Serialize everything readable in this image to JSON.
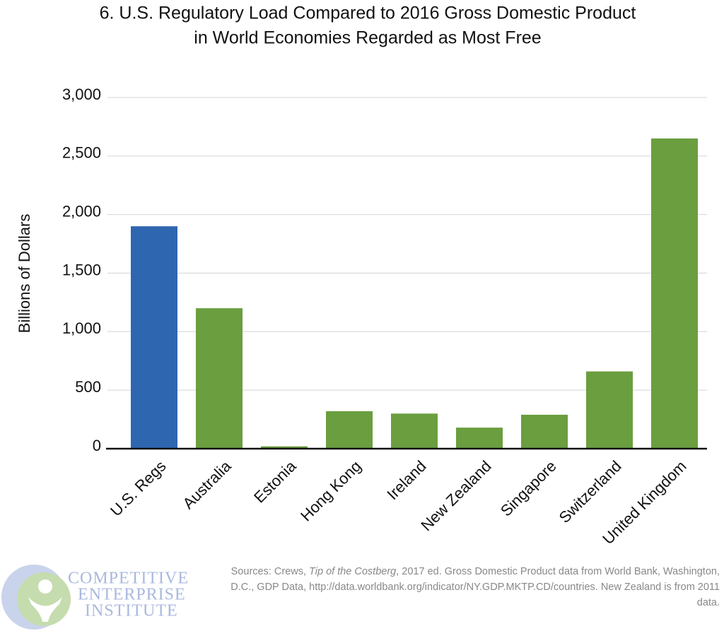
{
  "chart_data": {
    "type": "bar",
    "title": [
      "6. U.S. Regulatory Load Compared to 2016 Gross Domestic Product",
      "in World Economies Regarded as Most Free"
    ],
    "y_label": "Billions of Dollars",
    "categories": [
      "U.S. Regs",
      "Australia",
      "Estonia",
      "Hong Kong",
      "Ireland",
      "New Zealand",
      "Singapore",
      "Switzerland",
      "United Kingdom"
    ],
    "values": [
      1900,
      1200,
      20,
      320,
      300,
      180,
      290,
      660,
      2650
    ],
    "colors": [
      "#2e66b0",
      "#6a9e3f",
      "#6a9e3f",
      "#6a9e3f",
      "#6a9e3f",
      "#6a9e3f",
      "#6a9e3f",
      "#6a9e3f",
      "#6a9e3f"
    ],
    "ylim": [
      0,
      3000
    ],
    "yticks": [
      0,
      500,
      {
        "value": 1000,
        "label": "1,000"
      },
      {
        "value": 1500,
        "label": "1,500"
      },
      {
        "value": 2000,
        "label": "2,000"
      },
      {
        "value": 2500,
        "label": "2,500"
      },
      {
        "value": 3000,
        "label": "3,000"
      }
    ],
    "grid": true,
    "source": [
      "Sources: Crews, ",
      "Tip of the Costberg",
      ", 2017 ed. Gross Domestic Product data from World Bank, Washington, D.C., GDP Data, http://data.worldbank.org/indicator/NY.GDP.MKTP.CD/countries. New Zealand is from 2011 data."
    ]
  },
  "logo": [
    "COMPETITIVE",
    "ENTERPRISE",
    "INSTITUTE"
  ]
}
